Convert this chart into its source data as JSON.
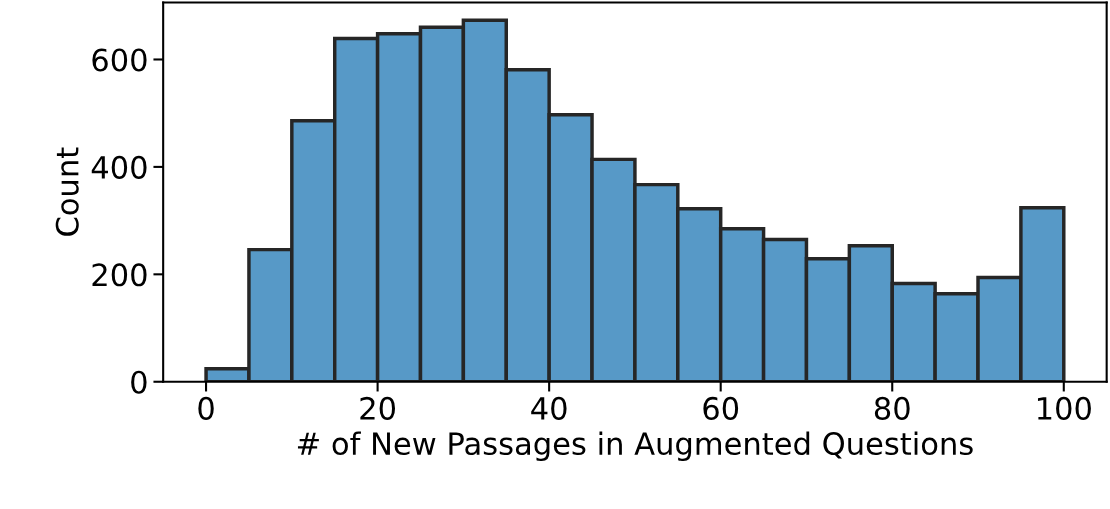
{
  "chart_data": {
    "type": "histogram",
    "xlabel": "# of New Passages in Augmented Questions",
    "ylabel": "Count",
    "bins": [
      0,
      5,
      10,
      15,
      20,
      25,
      30,
      35,
      40,
      45,
      50,
      55,
      60,
      65,
      70,
      75,
      80,
      85,
      90,
      95,
      100
    ],
    "values": [
      24,
      246,
      486,
      639,
      648,
      660,
      673,
      581,
      497,
      414,
      367,
      322,
      285,
      265,
      229,
      253,
      183,
      164,
      194,
      324
    ],
    "color": "#5799c7",
    "xlim": [
      -5,
      105
    ],
    "xticks": [
      0,
      20,
      40,
      60,
      80,
      100
    ],
    "ylim": [
      0,
      706
    ],
    "yticks": [
      0,
      200,
      400,
      600
    ],
    "grid": false
  }
}
